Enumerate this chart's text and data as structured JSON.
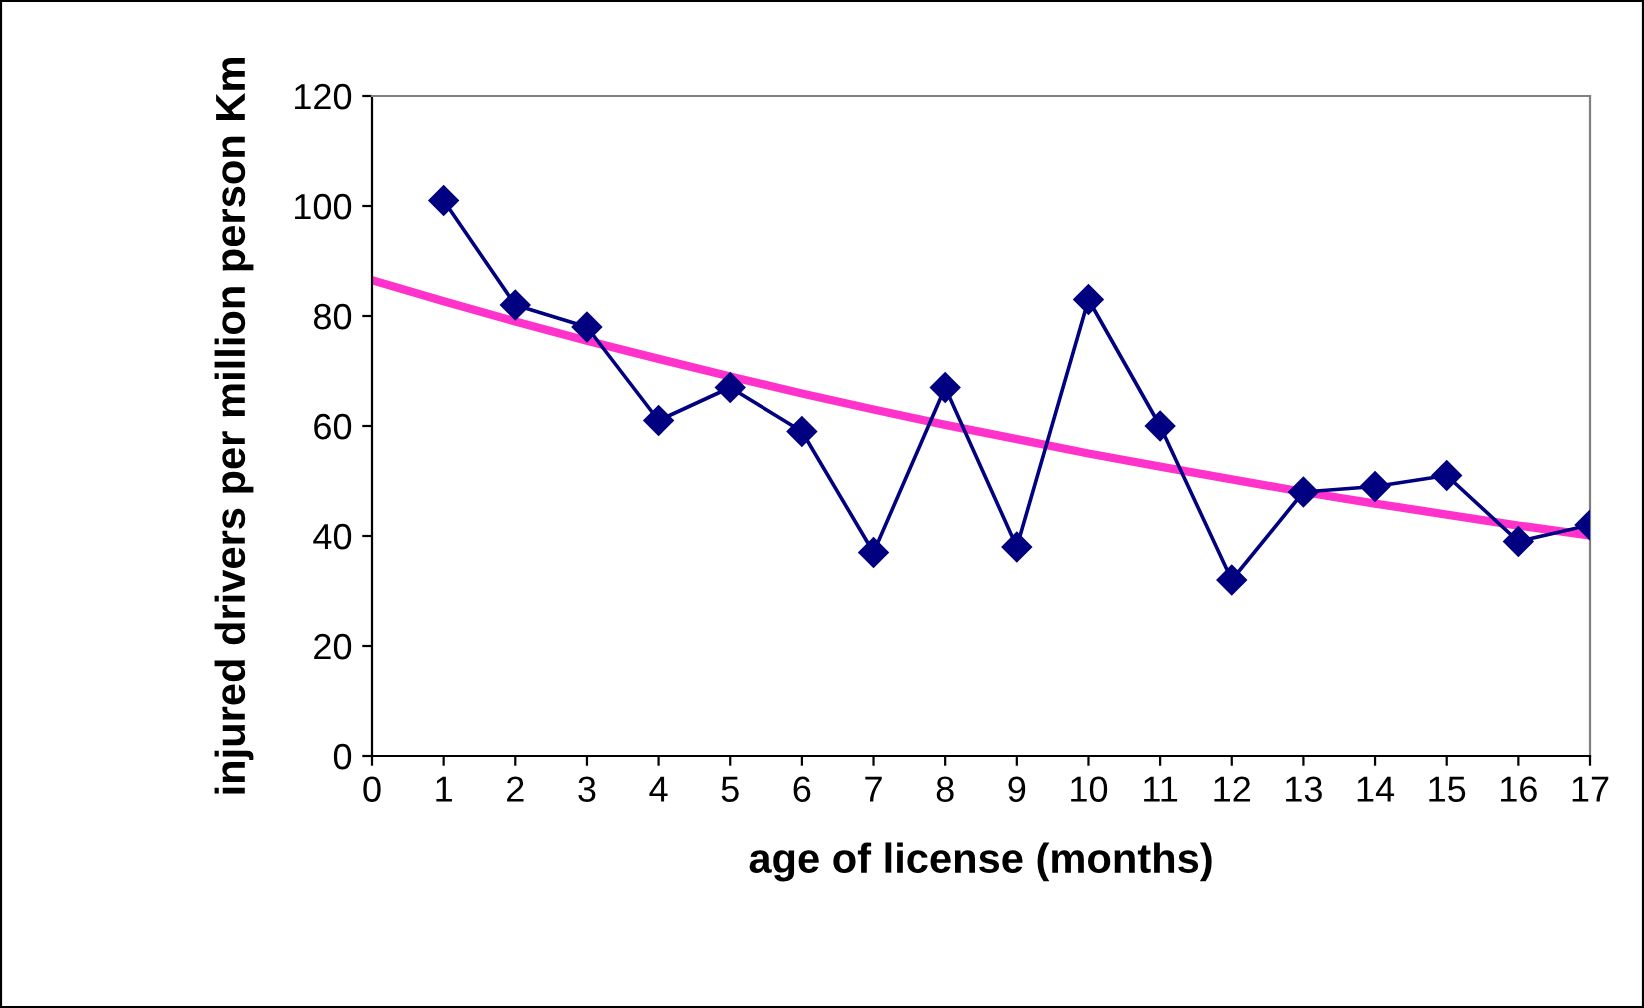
{
  "chart_data": {
    "type": "line",
    "xlabel": "age of license (months)",
    "ylabel": "injured drivers per million person Km",
    "xlim": [
      0,
      17
    ],
    "xticks": [
      0,
      1,
      2,
      3,
      4,
      5,
      6,
      7,
      8,
      9,
      10,
      11,
      12,
      13,
      14,
      15,
      16,
      17
    ],
    "ylim": [
      0,
      120
    ],
    "yticks": [
      0,
      20,
      40,
      60,
      80,
      100,
      120
    ],
    "grid": false,
    "legend": false,
    "series": [
      {
        "color": "#000080",
        "marker": "diamond",
        "x": [
          1,
          2,
          3,
          4,
          5,
          6,
          7,
          8,
          9,
          10,
          11,
          12,
          13,
          14,
          15,
          16,
          17
        ],
        "values": [
          101,
          82,
          78,
          61,
          67,
          59,
          37,
          67,
          38,
          83,
          60,
          32,
          48,
          49,
          51,
          39,
          42
        ]
      },
      {
        "color": "#ff33cc",
        "marker": "none",
        "x": [
          0,
          1,
          2,
          3,
          4,
          5,
          6,
          7,
          8,
          9,
          10,
          11,
          12,
          13,
          14,
          15,
          16,
          17
        ],
        "values": [
          86.5,
          82.7,
          79.0,
          75.5,
          72.2,
          69.0,
          65.9,
          63.0,
          60.2,
          57.6,
          55.0,
          52.6,
          50.3,
          48.0,
          45.9,
          43.9,
          41.9,
          40.1
        ]
      }
    ]
  }
}
